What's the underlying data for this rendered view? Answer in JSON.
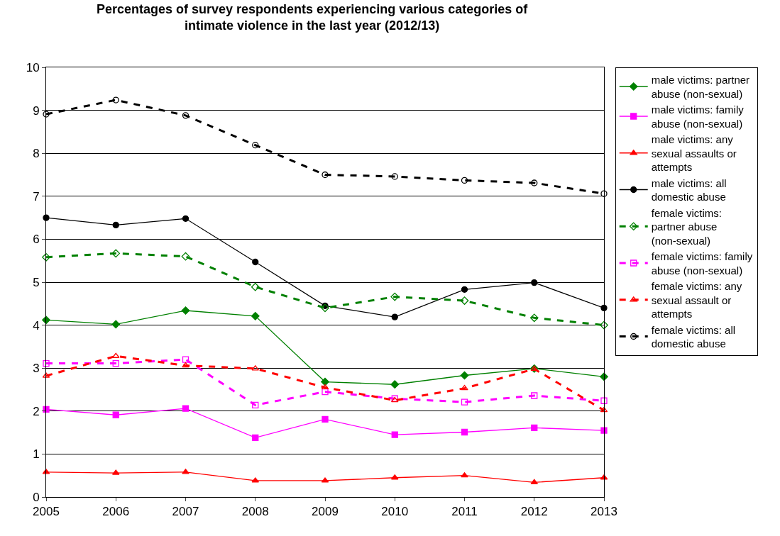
{
  "chart_data": {
    "type": "line",
    "title": "Percentages of survey respondents experiencing various categories of intimate violence in the last year (2012/13)",
    "x": [
      2005,
      2006,
      2007,
      2008,
      2009,
      2010,
      2011,
      2012,
      2013
    ],
    "xlim": [
      2005,
      2013
    ],
    "xticks": [
      2005,
      2006,
      2007,
      2008,
      2009,
      2010,
      2011,
      2012,
      2013
    ],
    "ylim": [
      0,
      10
    ],
    "yticks": [
      0,
      1,
      2,
      3,
      4,
      5,
      6,
      7,
      8,
      9,
      10
    ],
    "grid": "y",
    "legend": "right",
    "series": [
      {
        "name": "male victims: partner abuse (non-sexual)",
        "color": "#008000",
        "marker": "diamond",
        "line_style": "solid",
        "values": [
          4.12,
          4.02,
          4.34,
          4.21,
          2.68,
          2.62,
          2.83,
          2.99,
          2.8
        ]
      },
      {
        "name": "male victims: family abuse (non-sexual)",
        "color": "#ff00ff",
        "marker": "square",
        "line_style": "solid",
        "values": [
          2.04,
          1.91,
          2.06,
          1.38,
          1.81,
          1.45,
          1.51,
          1.61,
          1.55
        ]
      },
      {
        "name": "male victims: any sexual assaults or attempts",
        "color": "#ff0000",
        "marker": "triangle",
        "line_style": "solid",
        "values": [
          0.58,
          0.56,
          0.58,
          0.38,
          0.38,
          0.45,
          0.5,
          0.34,
          0.45
        ]
      },
      {
        "name": "male victims: all domestic abuse",
        "color": "#000000",
        "marker": "circle",
        "line_style": "solid",
        "values": [
          6.5,
          6.33,
          6.48,
          5.47,
          4.45,
          4.19,
          4.83,
          4.99,
          4.4
        ]
      },
      {
        "name": "female victims: partner abuse (non-sexual)",
        "color": "#008000",
        "marker": "diamond",
        "line_style": "dashed",
        "values": [
          5.58,
          5.67,
          5.6,
          4.89,
          4.4,
          4.66,
          4.57,
          4.17,
          4.0
        ]
      },
      {
        "name": "female victims: family abuse (non-sexual)",
        "color": "#ff00ff",
        "marker": "square",
        "line_style": "dashed",
        "values": [
          3.11,
          3.11,
          3.2,
          2.14,
          2.45,
          2.29,
          2.21,
          2.36,
          2.24
        ]
      },
      {
        "name": "female victims: any sexual assault or attempts",
        "color": "#ff0000",
        "marker": "triangle",
        "line_style": "dashed",
        "values": [
          2.82,
          3.28,
          3.06,
          2.99,
          2.55,
          2.25,
          2.53,
          2.98,
          2.02
        ]
      },
      {
        "name": "female victims: all domestic abuse",
        "color": "#000000",
        "marker": "circle",
        "line_style": "dashed",
        "values": [
          8.91,
          9.24,
          8.88,
          8.19,
          7.5,
          7.46,
          7.37,
          7.31,
          7.06
        ]
      }
    ]
  }
}
